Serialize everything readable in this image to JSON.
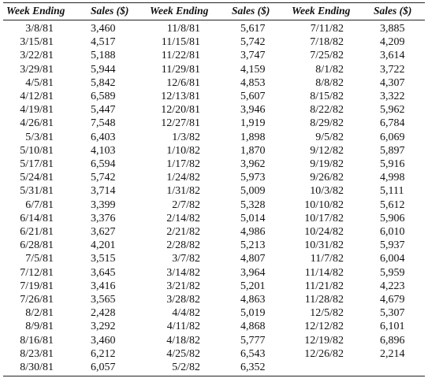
{
  "headers": {
    "week_ending": "Week Ending",
    "sales": "Sales ($)"
  },
  "columns": [
    {
      "dates": [
        "3/8/81",
        "3/15/81",
        "3/22/81",
        "3/29/81",
        "4/5/81",
        "4/12/81",
        "4/19/81",
        "4/26/81",
        "5/3/81",
        "5/10/81",
        "5/17/81",
        "5/24/81",
        "5/31/81",
        "6/7/81",
        "6/14/81",
        "6/21/81",
        "6/28/81",
        "7/5/81",
        "7/12/81",
        "7/19/81",
        "7/26/81",
        "8/2/81",
        "8/9/81",
        "8/16/81",
        "8/23/81",
        "8/30/81"
      ],
      "sales": [
        "3,460",
        "4,517",
        "5,188",
        "5,944",
        "5,842",
        "6,589",
        "5,447",
        "7,548",
        "6,403",
        "4,103",
        "6,594",
        "5,742",
        "3,714",
        "3,399",
        "3,376",
        "3,627",
        "4,201",
        "3,515",
        "3,645",
        "3,416",
        "3,565",
        "2,428",
        "3,292",
        "3,460",
        "6,212",
        "6,057"
      ]
    },
    {
      "dates": [
        "11/8/81",
        "11/15/81",
        "11/22/81",
        "11/29/81",
        "12/6/81",
        "12/13/81",
        "12/20/81",
        "12/27/81",
        "1/3/82",
        "1/10/82",
        "1/17/82",
        "1/24/82",
        "1/31/82",
        "2/7/82",
        "2/14/82",
        "2/21/82",
        "2/28/82",
        "3/7/82",
        "3/14/82",
        "3/21/82",
        "3/28/82",
        "4/4/82",
        "4/11/82",
        "4/18/82",
        "4/25/82",
        "5/2/82"
      ],
      "sales": [
        "5,617",
        "5,742",
        "3,747",
        "4,159",
        "4,853",
        "5,607",
        "3,946",
        "1,919",
        "1,898",
        "1,870",
        "3,962",
        "5,973",
        "5,009",
        "5,328",
        "5,014",
        "4,986",
        "5,213",
        "4,807",
        "3,964",
        "5,201",
        "4,863",
        "5,019",
        "4,868",
        "5,777",
        "6,543",
        "6,352"
      ]
    },
    {
      "dates": [
        "7/11/82",
        "7/18/82",
        "7/25/82",
        "8/1/82",
        "8/8/82",
        "8/15/82",
        "8/22/82",
        "8/29/82",
        "9/5/82",
        "9/12/82",
        "9/19/82",
        "9/26/82",
        "10/3/82",
        "10/10/82",
        "10/17/82",
        "10/24/82",
        "10/31/82",
        "11/7/82",
        "11/14/82",
        "11/21/82",
        "11/28/82",
        "12/5/82",
        "12/12/82",
        "12/19/82",
        "12/26/82"
      ],
      "sales": [
        "3,885",
        "4,209",
        "3,614",
        "3,722",
        "4,307",
        "3,322",
        "5,962",
        "6,784",
        "6,069",
        "5,897",
        "5,916",
        "4,998",
        "5,111",
        "5,612",
        "5,906",
        "6,010",
        "5,937",
        "6,004",
        "5,959",
        "4,223",
        "4,679",
        "5,307",
        "6,101",
        "6,896",
        "2,214"
      ]
    }
  ]
}
